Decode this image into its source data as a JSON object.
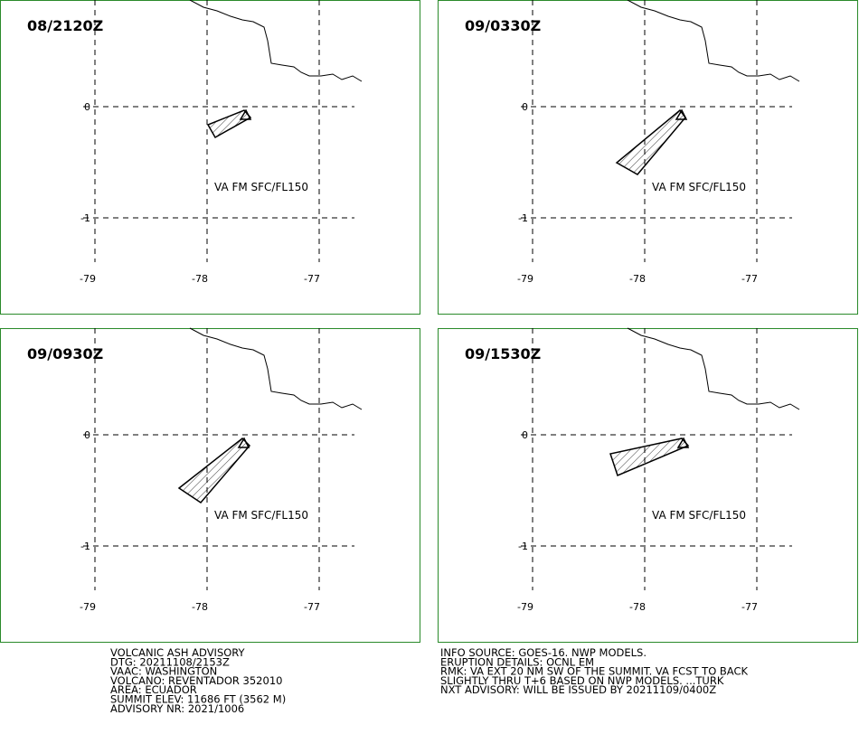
{
  "panels": [
    {
      "time": "08/2120Z",
      "label": "VA FM SFC/FL150"
    },
    {
      "time": "09/0330Z",
      "label": "VA FM SFC/FL150"
    },
    {
      "time": "09/0930Z",
      "label": "VA FM SFC/FL150"
    },
    {
      "time": "09/1530Z",
      "label": "VA FM SFC/FL150"
    }
  ],
  "lat_labels": [
    "0",
    "-1"
  ],
  "lon_labels": [
    "-79",
    "-78",
    "-77"
  ],
  "advisory_left": [
    "VOLCANIC ASH ADVISORY",
    "DTG: 20211108/2153Z",
    "VAAC: WASHINGTON",
    "VOLCANO: REVENTADOR 352010",
    "AREA: ECUADOR",
    "SUMMIT ELEV: 11686 FT (3562 M)",
    "ADVISORY NR: 2021/1006"
  ],
  "advisory_right": [
    "INFO SOURCE: GOES-16. NWP MODELS.",
    "ERUPTION DETAILS: OCNL EM",
    "RMK: VA EXT 20 NM SW OF THE SUMMIT. VA FCST TO BACK",
    "SLIGHTLY THRU T+6 BASED ON NWP MODELS. ...TURK",
    "NXT ADVISORY: WILL BE ISSUED BY 20211109/0400Z"
  ]
}
